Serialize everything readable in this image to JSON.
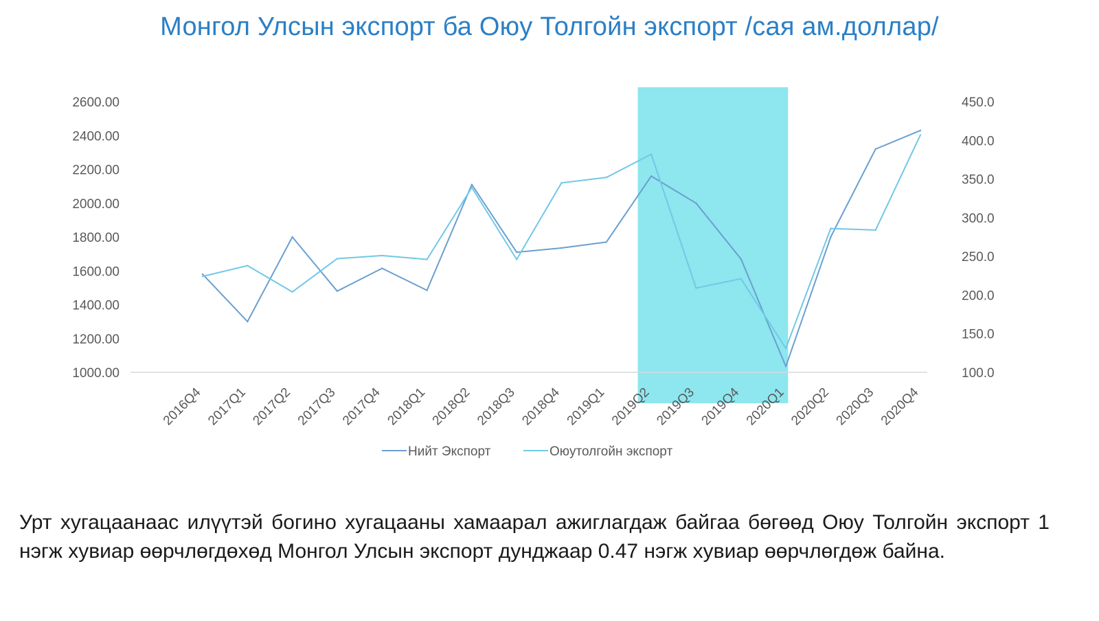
{
  "chart_data": {
    "type": "line",
    "title": "Монгол Улсын экспорт ба Оюу Толгойн экспорт /сая ам.доллар/",
    "categories": [
      "2016Q4",
      "2017Q1",
      "2017Q2",
      "2017Q3",
      "2017Q4",
      "2018Q1",
      "2018Q2",
      "2018Q3",
      "2018Q4",
      "2019Q1",
      "2019Q2",
      "2019Q3",
      "2019Q4",
      "2020Q1",
      "2020Q2",
      "2020Q3",
      "2020Q4"
    ],
    "series": [
      {
        "name": "Нийт Экспорт",
        "axis": "left",
        "color": "#6a9fd0",
        "values": [
          1580,
          1300,
          1800,
          1480,
          1615,
          1485,
          2110,
          1710,
          1735,
          1770,
          2160,
          2000,
          1670,
          1035,
          1800,
          2320,
          2430
        ]
      },
      {
        "name": "Оюутолгойн экспорт",
        "axis": "right",
        "color": "#70c8e6",
        "values": [
          224,
          238,
          204,
          247,
          251,
          246,
          339,
          246,
          345,
          352,
          382,
          209,
          221,
          131,
          286,
          284,
          407
        ]
      }
    ],
    "yleft": {
      "min": 1000,
      "max": 2600,
      "step": 200,
      "decimals": 2
    },
    "yright": {
      "min": 100,
      "max": 450,
      "step": 50,
      "decimals": 1
    },
    "highlight": {
      "from": "2019Q2",
      "to": "2020Q1",
      "color": "#8ee6ee"
    },
    "legend": "bottom",
    "grid": false
  },
  "caption": "Урт хугацаанаас илүүтэй богино хугацааны хамаарал ажиглагдаж байгаа бөгөөд Оюу Толгойн экспорт 1 нэгж хувиар өөрчлөгдөхөд Монгол Улсын экспорт дунджаар 0.47 нэгж хувиар өөрчлөгдөж байна."
}
